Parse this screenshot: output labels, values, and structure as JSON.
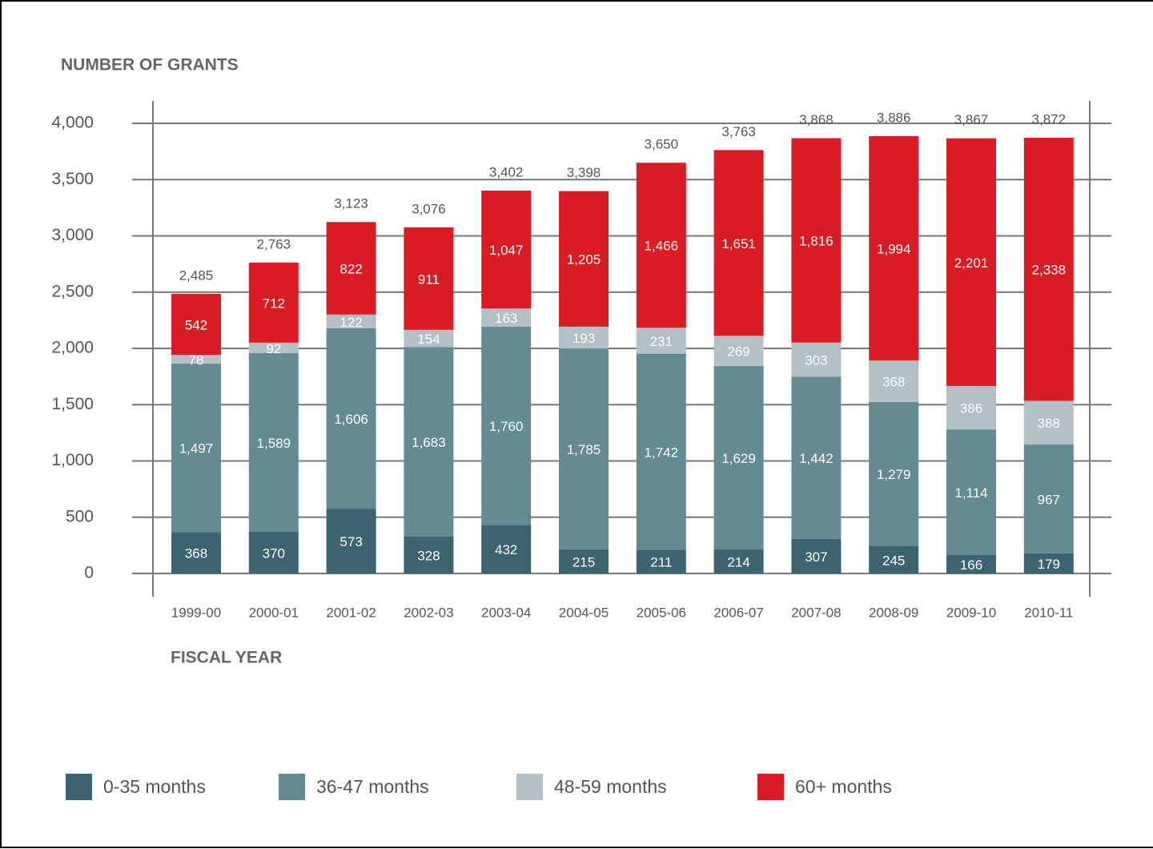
{
  "chart_data": {
    "type": "stacked_bar",
    "y_label": "NUMBER OF GRANTS",
    "x_label": "FISCAL YEAR",
    "categories": [
      "1999-00",
      "2000-01",
      "2001-02",
      "2002-03",
      "2003-04",
      "2004-05",
      "2005-06",
      "2006-07",
      "2007-08",
      "2008-09",
      "2009-10",
      "2010-11"
    ],
    "series": [
      {
        "name": "0-35 months",
        "color": "#3b6470",
        "values": [
          368,
          370,
          573,
          328,
          432,
          215,
          211,
          214,
          307,
          245,
          166,
          179
        ],
        "value_labels": [
          "368",
          "370",
          "573",
          "328",
          "432",
          "215",
          "211",
          "214",
          "307",
          "245",
          "166",
          "179"
        ]
      },
      {
        "name": "36-47 months",
        "color": "#648a92",
        "values": [
          1497,
          1589,
          1606,
          1683,
          1760,
          1785,
          1742,
          1629,
          1442,
          1279,
          1114,
          967
        ],
        "value_labels": [
          "1,497",
          "1,589",
          "1,606",
          "1,683",
          "1,760",
          "1,785",
          "1,742",
          "1,629",
          "1,442",
          "1,279",
          "1,114",
          "967"
        ]
      },
      {
        "name": "48-59 months",
        "color": "#b4c0c6",
        "values": [
          78,
          92,
          122,
          154,
          163,
          193,
          231,
          269,
          303,
          368,
          386,
          388
        ],
        "value_labels": [
          "78",
          "92",
          "122",
          "154",
          "163",
          "193",
          "231",
          "269",
          "303",
          "368",
          "386",
          "388"
        ]
      },
      {
        "name": "60+ months",
        "color": "#d91c24",
        "values": [
          542,
          712,
          822,
          911,
          1047,
          1205,
          1466,
          1651,
          1816,
          1994,
          2201,
          2338
        ],
        "value_labels": [
          "542",
          "712",
          "822",
          "911",
          "1,047",
          "1,205",
          "1,466",
          "1,651",
          "1,816",
          "1,994",
          "2,201",
          "2,338"
        ]
      }
    ],
    "totals": {
      "values": [
        2485,
        2763,
        3123,
        3076,
        3402,
        3398,
        3650,
        3763,
        3868,
        3886,
        3867,
        3872
      ],
      "value_labels": [
        "2,485",
        "2,763",
        "3,123",
        "3,076",
        "3,402",
        "3,398",
        "3,650",
        "3,763",
        "3,868",
        "3,886",
        "3,867",
        "3,872"
      ]
    },
    "ylim": [
      0,
      4000
    ],
    "yticks": [
      0,
      500,
      {
        "value": 1000,
        "label": "1,000"
      },
      {
        "value": 1500,
        "label": "1,500"
      },
      {
        "value": 2000,
        "label": "2,000"
      },
      {
        "value": 2500,
        "label": "2,500"
      },
      {
        "value": 3000,
        "label": "3,000"
      },
      {
        "value": 3500,
        "label": "3,500"
      },
      {
        "value": 4000,
        "label": "4,000"
      }
    ],
    "grid": true
  }
}
